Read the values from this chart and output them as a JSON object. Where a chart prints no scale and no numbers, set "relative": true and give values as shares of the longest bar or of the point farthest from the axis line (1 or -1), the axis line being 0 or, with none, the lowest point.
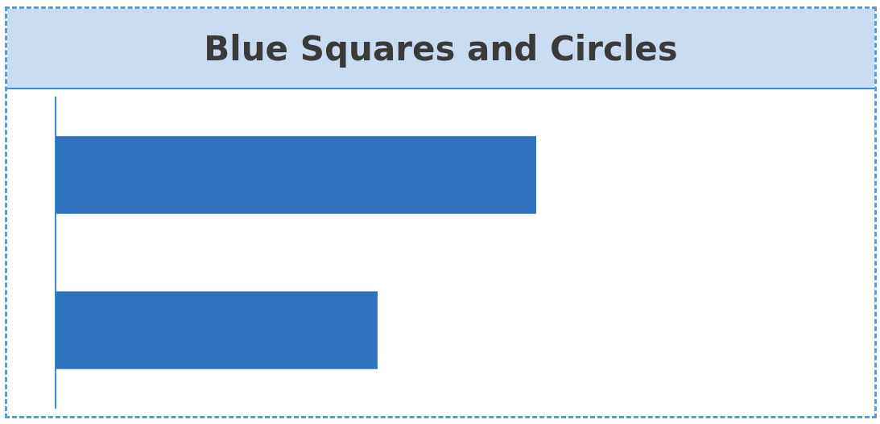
{
  "chart_data": {
    "type": "bar",
    "title": "Blue Squares and Circles",
    "orientation": "horizontal",
    "relative": true,
    "categories": [
      null,
      null
    ],
    "values": [
      1,
      0.67
    ],
    "color": "#2f73bf"
  }
}
